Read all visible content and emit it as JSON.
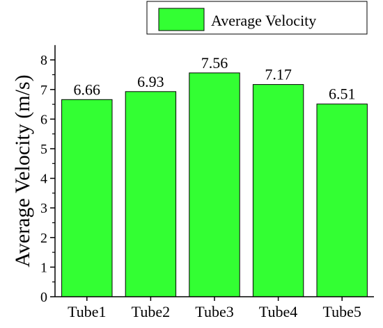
{
  "chart_data": {
    "type": "bar",
    "categories": [
      "Tube1",
      "Tube2",
      "Tube3",
      "Tube4",
      "Tube5"
    ],
    "series": [
      {
        "name": "Average Velocity",
        "values": [
          6.66,
          6.93,
          7.56,
          7.17,
          6.51
        ]
      }
    ],
    "data_labels": [
      "6.66",
      "6.93",
      "7.56",
      "7.17",
      "6.51"
    ],
    "title": "",
    "xlabel": "",
    "ylabel": "Average Velocity (m/s)",
    "ylim": [
      0,
      8.5
    ],
    "yticks": [
      0,
      1,
      2,
      3,
      4,
      5,
      6,
      7,
      8
    ],
    "grid": false,
    "legend_position": "top-right",
    "bar_color": "#33ff33",
    "bar_edge_color": "#000000"
  }
}
